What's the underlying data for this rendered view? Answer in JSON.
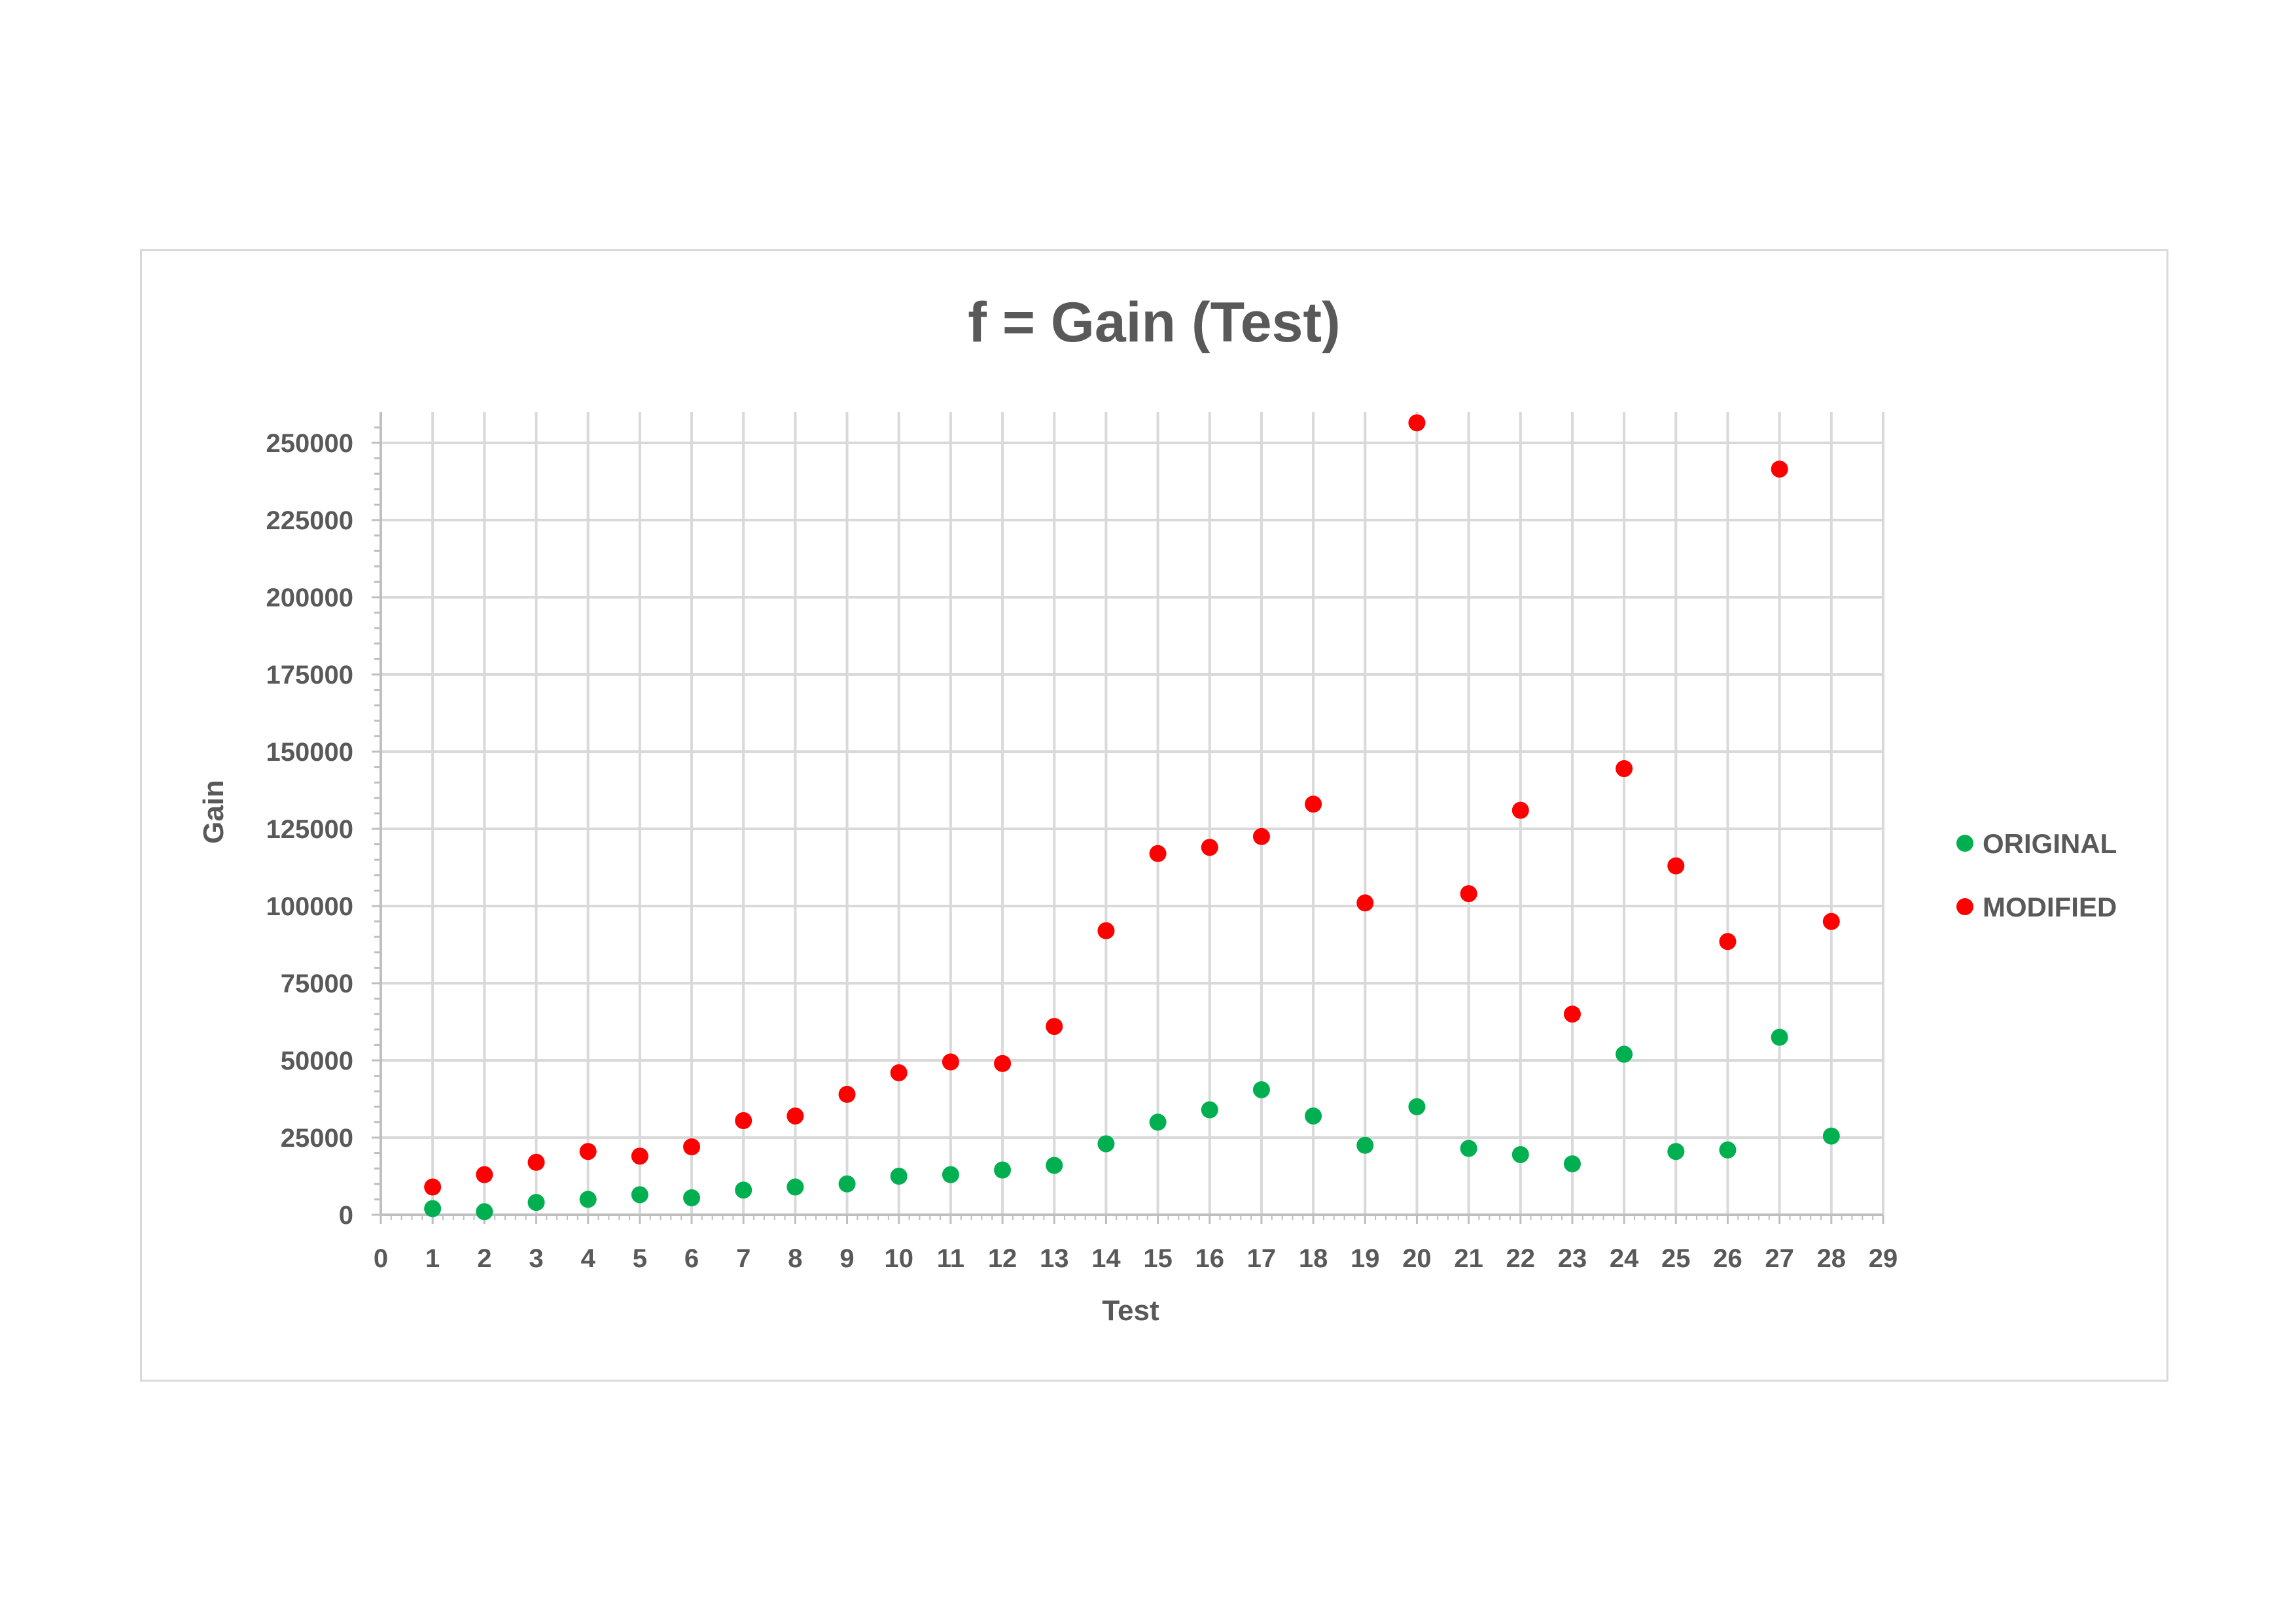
{
  "chart_data": {
    "type": "scatter",
    "title": "f = Gain (Test)",
    "xlabel": "Test",
    "ylabel": "Gain",
    "xlim": [
      0,
      29
    ],
    "ylim": [
      0,
      250000
    ],
    "x_ticks": [
      0,
      1,
      2,
      3,
      4,
      5,
      6,
      7,
      8,
      9,
      10,
      11,
      12,
      13,
      14,
      15,
      16,
      17,
      18,
      19,
      20,
      21,
      22,
      23,
      24,
      25,
      26,
      27,
      28,
      29
    ],
    "y_ticks": [
      0,
      25000,
      50000,
      75000,
      100000,
      125000,
      150000,
      175000,
      200000,
      225000,
      250000
    ],
    "grid": true,
    "legend_position": "right",
    "series": [
      {
        "name": "ORIGINAL",
        "color": "#00b050",
        "x": [
          1,
          2,
          3,
          4,
          5,
          6,
          7,
          8,
          9,
          10,
          11,
          12,
          13,
          14,
          15,
          16,
          17,
          18,
          19,
          20,
          21,
          22,
          23,
          24,
          25,
          26,
          27,
          28
        ],
        "y": [
          2000,
          1000,
          4000,
          5000,
          6500,
          5500,
          8000,
          9000,
          10000,
          12500,
          13000,
          14500,
          16000,
          23000,
          30000,
          34000,
          40500,
          32000,
          22500,
          35000,
          21500,
          19500,
          16500,
          52000,
          20500,
          21000,
          57500,
          25500
        ]
      },
      {
        "name": "MODIFIED",
        "color": "#ff0000",
        "x": [
          1,
          2,
          3,
          4,
          5,
          6,
          7,
          8,
          9,
          10,
          11,
          12,
          13,
          14,
          15,
          16,
          17,
          18,
          19,
          20,
          21,
          22,
          23,
          24,
          25,
          26,
          27,
          28
        ],
        "y": [
          9000,
          13000,
          17000,
          20500,
          19000,
          22000,
          30500,
          32000,
          39000,
          46000,
          49500,
          49000,
          61000,
          92000,
          117000,
          119000,
          122500,
          133000,
          101000,
          256500,
          104000,
          131000,
          65000,
          144500,
          113000,
          88500,
          241500,
          95000
        ]
      }
    ]
  }
}
